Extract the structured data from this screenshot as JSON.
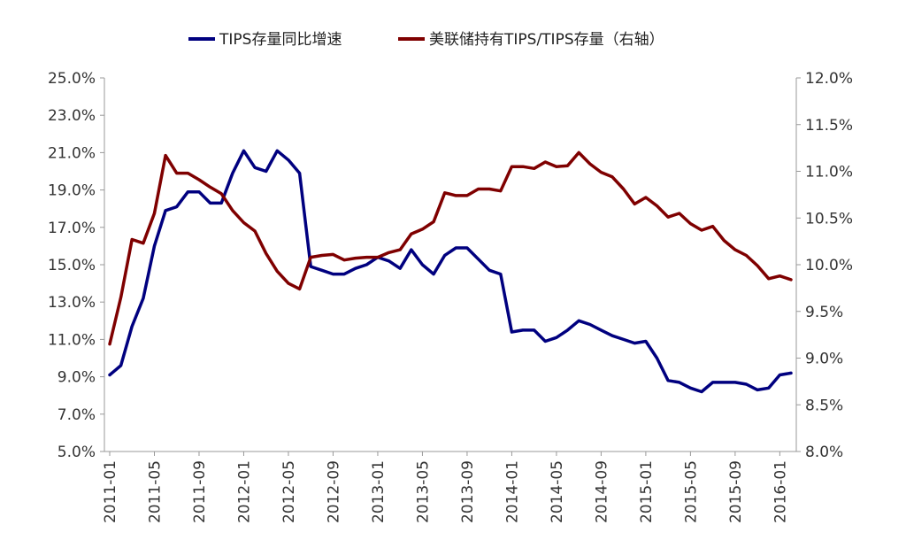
{
  "chart_data": {
    "type": "line",
    "title": "",
    "xlabel": "",
    "ylabel": "",
    "legend_position": "top",
    "grid": false,
    "x_tick_labels": [
      "2011-01",
      "2011-05",
      "2011-09",
      "2012-01",
      "2012-05",
      "2012-09",
      "2013-01",
      "2013-05",
      "2013-09",
      "2014-01",
      "2014-05",
      "2014-09",
      "2015-01",
      "2015-05",
      "2015-09",
      "2016-01"
    ],
    "x": [
      "2011-01",
      "2011-02",
      "2011-03",
      "2011-04",
      "2011-05",
      "2011-06",
      "2011-07",
      "2011-08",
      "2011-09",
      "2011-10",
      "2011-11",
      "2011-12",
      "2012-01",
      "2012-02",
      "2012-03",
      "2012-04",
      "2012-05",
      "2012-06",
      "2012-07",
      "2012-08",
      "2012-09",
      "2012-10",
      "2012-11",
      "2012-12",
      "2013-01",
      "2013-02",
      "2013-03",
      "2013-04",
      "2013-05",
      "2013-06",
      "2013-07",
      "2013-08",
      "2013-09",
      "2013-10",
      "2013-11",
      "2013-12",
      "2014-01",
      "2014-02",
      "2014-03",
      "2014-04",
      "2014-05",
      "2014-06",
      "2014-07",
      "2014-08",
      "2014-09",
      "2014-10",
      "2014-11",
      "2014-12",
      "2015-01",
      "2015-02",
      "2015-03",
      "2015-04",
      "2015-05",
      "2015-06",
      "2015-07",
      "2015-08",
      "2015-09",
      "2015-10",
      "2015-11",
      "2015-12",
      "2016-01",
      "2016-02"
    ],
    "y_left": {
      "min": 5.0,
      "max": 25.0,
      "tick_labels": [
        "25.0%",
        "23.0%",
        "21.0%",
        "19.0%",
        "17.0%",
        "15.0%",
        "13.0%",
        "11.0%",
        "9.0%",
        "7.0%",
        "5.0%"
      ],
      "tick_values": [
        25,
        23,
        21,
        19,
        17,
        15,
        13,
        11,
        9,
        7,
        5
      ]
    },
    "y_right": {
      "min": 8.0,
      "max": 12.0,
      "tick_labels": [
        "12.0%",
        "11.5%",
        "11.0%",
        "10.5%",
        "10.0%",
        "9.5%",
        "9.0%",
        "8.5%",
        "8.0%"
      ],
      "tick_values": [
        12,
        11.5,
        11,
        10.5,
        10,
        9.5,
        9,
        8.5,
        8
      ]
    },
    "series": [
      {
        "name": "TIPS存量同比增速",
        "axis": "left",
        "color": "#00007f",
        "values": [
          9.1,
          9.6,
          11.7,
          13.2,
          16.0,
          17.9,
          18.1,
          18.9,
          18.9,
          18.3,
          18.3,
          19.9,
          21.1,
          20.2,
          20.0,
          21.1,
          20.6,
          19.9,
          14.9,
          14.7,
          14.5,
          14.5,
          14.8,
          15.0,
          15.4,
          15.2,
          14.8,
          15.8,
          15.0,
          14.5,
          15.5,
          15.9,
          15.9,
          15.3,
          14.7,
          14.5,
          11.4,
          11.5,
          11.5,
          10.9,
          11.1,
          11.5,
          12.0,
          11.8,
          11.5,
          11.2,
          11.0,
          10.8,
          10.9,
          10.0,
          8.8,
          8.7,
          8.4,
          8.2,
          8.7,
          8.7,
          8.7,
          8.6,
          8.3,
          8.4,
          9.1,
          9.2
        ]
      },
      {
        "name": "美联储持有TIPS/TIPS存量（右轴）",
        "axis": "right",
        "color": "#7f0000",
        "values": [
          9.15,
          9.65,
          10.27,
          10.23,
          10.55,
          11.17,
          10.98,
          10.98,
          10.91,
          10.83,
          10.76,
          10.58,
          10.45,
          10.36,
          10.12,
          9.93,
          9.8,
          9.74,
          10.08,
          10.1,
          10.11,
          10.05,
          10.07,
          10.08,
          10.08,
          10.13,
          10.16,
          10.33,
          10.38,
          10.46,
          10.77,
          10.74,
          10.74,
          10.81,
          10.81,
          10.79,
          11.05,
          11.05,
          11.03,
          11.1,
          11.05,
          11.06,
          11.2,
          11.08,
          10.99,
          10.94,
          10.81,
          10.65,
          10.72,
          10.63,
          10.51,
          10.55,
          10.44,
          10.37,
          10.41,
          10.26,
          10.16,
          10.1,
          9.99,
          9.85,
          9.88,
          9.84
        ]
      }
    ]
  }
}
